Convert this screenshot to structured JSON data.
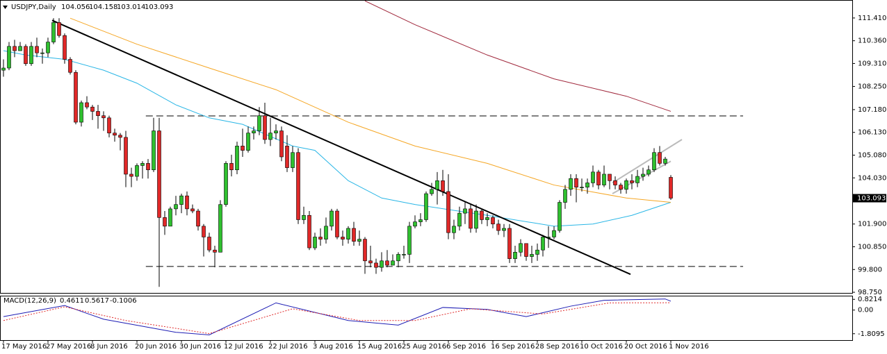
{
  "chart_data": [
    {
      "type": "candlestick",
      "title": "USDJPY,Daily",
      "categories": [
        "17 May 2016",
        null,
        null,
        null,
        null,
        null,
        null,
        null,
        "27 May 2016",
        null,
        null,
        null,
        null,
        null,
        null,
        null,
        "8 Jun 2016",
        null,
        null,
        null,
        null,
        null,
        null,
        null,
        "20 Jun 2016",
        null,
        null,
        null,
        null,
        null,
        null,
        null,
        "30 Jun 2016",
        null,
        null,
        null,
        null,
        null,
        null,
        null,
        "12 Jul 2016",
        null,
        null,
        null,
        null,
        null,
        null,
        null,
        "22 Jul 2016",
        null,
        null,
        null,
        null,
        null,
        null,
        null,
        "3 Aug 2016",
        null,
        null,
        null,
        null,
        null,
        null,
        null,
        "15 Aug 2016",
        null,
        null,
        null,
        null,
        null,
        null,
        null,
        "25 Aug 2016",
        null,
        null,
        null,
        null,
        null,
        null,
        null,
        "6 Sep 2016",
        null,
        null,
        null,
        null,
        null,
        null,
        null,
        "16 Sep 2016",
        null,
        null,
        null,
        null,
        null,
        null,
        null,
        "28 Sep 2016",
        null,
        null,
        null,
        null,
        null,
        null,
        null,
        "10 Oct 2016",
        null,
        null,
        null,
        null,
        null,
        null,
        null,
        "20 Oct 2016",
        null,
        null,
        null,
        null,
        null,
        null,
        null,
        "1 Nov 2016"
      ],
      "ohlc": [
        [
          109.0,
          109.5,
          108.7,
          109.1
        ],
        [
          109.1,
          110.3,
          109.0,
          110.1
        ],
        [
          110.1,
          110.4,
          109.6,
          109.9
        ],
        [
          109.9,
          110.3,
          109.9,
          110.1
        ],
        [
          110.1,
          110.2,
          109.2,
          109.3
        ],
        [
          109.3,
          110.3,
          109.2,
          110.1
        ],
        [
          110.1,
          110.5,
          109.6,
          109.8
        ],
        [
          109.8,
          110.0,
          109.3,
          109.8
        ],
        [
          109.8,
          110.5,
          109.6,
          110.3
        ],
        [
          110.3,
          111.4,
          110.2,
          111.2
        ],
        [
          111.2,
          111.4,
          110.5,
          110.6
        ],
        [
          110.6,
          110.7,
          109.3,
          109.5
        ],
        [
          109.5,
          109.6,
          108.8,
          108.9
        ],
        [
          108.9,
          109.0,
          106.5,
          106.6
        ],
        [
          106.6,
          107.6,
          106.4,
          107.5
        ],
        [
          107.5,
          107.8,
          107.2,
          107.3
        ],
        [
          107.3,
          107.4,
          106.7,
          107.1
        ],
        [
          107.1,
          107.4,
          106.3,
          106.9
        ],
        [
          106.9,
          107.1,
          106.2,
          106.8
        ],
        [
          106.8,
          106.9,
          105.9,
          106.1
        ],
        [
          106.1,
          106.3,
          105.7,
          106.0
        ],
        [
          106.0,
          106.1,
          105.3,
          105.9
        ],
        [
          105.9,
          106.2,
          103.6,
          104.2
        ],
        [
          104.2,
          104.5,
          103.6,
          104.1
        ],
        [
          104.1,
          104.7,
          103.9,
          104.6
        ],
        [
          104.6,
          104.8,
          104.0,
          104.7
        ],
        [
          104.7,
          104.9,
          104.0,
          104.4
        ],
        [
          104.4,
          106.8,
          104.3,
          106.2
        ],
        [
          106.2,
          106.8,
          99.0,
          102.2
        ],
        [
          102.2,
          102.5,
          101.4,
          101.8
        ],
        [
          101.8,
          102.7,
          101.8,
          102.6
        ],
        [
          102.6,
          103.2,
          102.3,
          102.8
        ],
        [
          102.8,
          103.3,
          102.4,
          103.2
        ],
        [
          103.2,
          103.4,
          102.3,
          102.6
        ],
        [
          102.6,
          102.8,
          102.4,
          102.5
        ],
        [
          102.5,
          102.6,
          101.6,
          101.8
        ],
        [
          101.8,
          101.9,
          100.4,
          101.3
        ],
        [
          101.3,
          101.5,
          100.6,
          100.7
        ],
        [
          100.7,
          100.9,
          99.9,
          100.6
        ],
        [
          100.6,
          103.0,
          100.6,
          102.8
        ],
        [
          102.8,
          104.8,
          102.7,
          104.7
        ],
        [
          104.7,
          105.1,
          104.1,
          104.4
        ],
        [
          104.4,
          105.7,
          104.2,
          105.5
        ],
        [
          105.5,
          106.3,
          105.0,
          105.3
        ],
        [
          105.3,
          106.4,
          105.2,
          106.1
        ],
        [
          106.1,
          106.4,
          105.8,
          106.2
        ],
        [
          106.2,
          107.3,
          106.0,
          106.9
        ],
        [
          106.9,
          107.5,
          105.6,
          105.8
        ],
        [
          105.8,
          106.8,
          105.5,
          106.1
        ],
        [
          106.1,
          106.5,
          105.8,
          106.2
        ],
        [
          106.2,
          106.4,
          104.8,
          105.0
        ],
        [
          105.5,
          106.0,
          104.3,
          104.5
        ],
        [
          104.5,
          105.5,
          104.3,
          105.2
        ],
        [
          105.2,
          105.4,
          101.9,
          102.1
        ],
        [
          102.1,
          102.7,
          101.9,
          102.3
        ],
        [
          102.3,
          102.5,
          100.7,
          100.8
        ],
        [
          100.8,
          101.5,
          100.7,
          101.3
        ],
        [
          101.3,
          101.7,
          100.9,
          101.2
        ],
        [
          101.2,
          102.2,
          101.0,
          101.8
        ],
        [
          101.8,
          102.6,
          101.6,
          102.5
        ],
        [
          102.5,
          102.6,
          101.2,
          101.3
        ],
        [
          101.3,
          101.6,
          100.9,
          101.2
        ],
        [
          101.2,
          101.8,
          101.0,
          101.7
        ],
        [
          101.7,
          102.0,
          100.9,
          101.1
        ],
        [
          101.1,
          101.6,
          100.9,
          101.2
        ],
        [
          101.2,
          101.3,
          99.6,
          100.2
        ],
        [
          100.2,
          100.9,
          99.9,
          100.1
        ],
        [
          100.1,
          100.3,
          99.6,
          99.9
        ],
        [
          99.9,
          100.6,
          99.7,
          100.2
        ],
        [
          100.2,
          100.7,
          99.9,
          100.0
        ],
        [
          100.0,
          100.5,
          100.0,
          100.2
        ],
        [
          100.2,
          100.6,
          99.9,
          100.5
        ],
        [
          100.5,
          100.9,
          100.3,
          100.5
        ],
        [
          100.5,
          102.0,
          100.1,
          101.8
        ],
        [
          101.8,
          102.3,
          101.7,
          102.0
        ],
        [
          102.0,
          102.4,
          101.8,
          102.1
        ],
        [
          102.1,
          103.4,
          102.0,
          103.3
        ],
        [
          103.3,
          103.8,
          103.2,
          103.5
        ],
        [
          103.5,
          104.3,
          102.8,
          103.9
        ],
        [
          103.9,
          104.4,
          103.2,
          103.4
        ],
        [
          103.4,
          104.2,
          101.2,
          101.5
        ],
        [
          101.5,
          102.1,
          101.2,
          101.8
        ],
        [
          101.8,
          102.7,
          101.6,
          102.4
        ],
        [
          102.4,
          102.9,
          101.9,
          102.6
        ],
        [
          102.6,
          102.8,
          101.5,
          101.7
        ],
        [
          101.7,
          102.8,
          101.5,
          102.5
        ],
        [
          102.5,
          102.6,
          101.9,
          102.1
        ],
        [
          102.1,
          102.4,
          101.8,
          102.2
        ],
        [
          102.2,
          102.3,
          101.7,
          101.9
        ],
        [
          101.9,
          102.1,
          101.4,
          101.6
        ],
        [
          101.6,
          101.9,
          101.3,
          101.7
        ],
        [
          101.7,
          101.9,
          100.1,
          100.3
        ],
        [
          100.3,
          100.9,
          100.1,
          100.6
        ],
        [
          100.6,
          101.2,
          100.4,
          101.0
        ],
        [
          101.0,
          101.0,
          100.2,
          100.4
        ],
        [
          100.4,
          100.9,
          100.1,
          100.5
        ],
        [
          100.5,
          101.0,
          100.2,
          100.7
        ],
        [
          100.7,
          101.4,
          100.4,
          101.3
        ],
        [
          101.3,
          101.8,
          100.8,
          101.3
        ],
        [
          101.3,
          101.8,
          101.2,
          101.6
        ],
        [
          101.6,
          103.0,
          101.5,
          102.9
        ],
        [
          102.9,
          103.7,
          102.6,
          103.5
        ],
        [
          103.5,
          104.2,
          103.2,
          104.0
        ],
        [
          104.0,
          104.2,
          102.9,
          103.6
        ],
        [
          103.6,
          104.0,
          103.4,
          103.6
        ],
        [
          103.6,
          104.0,
          103.3,
          103.8
        ],
        [
          103.8,
          104.6,
          103.6,
          104.3
        ],
        [
          104.3,
          104.4,
          103.5,
          103.7
        ],
        [
          103.7,
          104.6,
          103.6,
          104.2
        ],
        [
          104.2,
          104.2,
          103.5,
          103.9
        ],
        [
          103.9,
          104.1,
          103.5,
          103.7
        ],
        [
          103.7,
          103.8,
          103.3,
          103.5
        ],
        [
          103.5,
          104.0,
          103.3,
          103.9
        ],
        [
          103.9,
          104.2,
          103.5,
          103.8
        ],
        [
          103.8,
          104.4,
          103.6,
          104.1
        ],
        [
          104.1,
          104.5,
          103.9,
          104.2
        ],
        [
          104.2,
          104.6,
          104.1,
          104.4
        ],
        [
          104.4,
          105.4,
          104.3,
          105.2
        ],
        [
          105.2,
          105.5,
          104.6,
          104.7
        ],
        [
          104.7,
          105.0,
          104.6,
          104.9
        ],
        [
          104.056,
          104.158,
          103.014,
          103.093
        ]
      ],
      "up_color": "#2fc02f",
      "down_color": "#e02828",
      "series": [
        {
          "color": "#29b6e6",
          "x": [
            0,
            4,
            11,
            18,
            24,
            31,
            37,
            43,
            52,
            56,
            62,
            68,
            74,
            87,
            99,
            106,
            113,
            120
          ],
          "values": [
            109.9,
            109.7,
            109.5,
            109.0,
            108.4,
            107.4,
            106.8,
            106.5,
            105.5,
            105.3,
            103.9,
            103.1,
            102.8,
            102.3,
            101.8,
            101.9,
            102.3,
            102.9
          ]
        },
        {
          "color": "#f5a623",
          "x": [
            12,
            24,
            37,
            49,
            62,
            74,
            87,
            99,
            112,
            120
          ],
          "values": [
            111.4,
            110.2,
            109.1,
            108.1,
            106.6,
            105.5,
            104.7,
            103.7,
            103.1,
            102.9
          ]
        },
        {
          "color": "#a0283c",
          "x": [
            65,
            74,
            87,
            99,
            112,
            120
          ],
          "values": [
            112.2,
            111.1,
            109.7,
            108.6,
            107.8,
            107.1
          ]
        }
      ],
      "trendlines": [
        {
          "color": "#000000",
          "x": [
            8.75,
            112.75
          ],
          "y": [
            111.3,
            99.58
          ]
        },
        {
          "color": "#bbbbbb",
          "x": [
            109.5,
            122
          ],
          "y": [
            103.8,
            105.8
          ]
        },
        {
          "color": "#bbbbbb",
          "x": [
            109.5,
            120
          ],
          "y": [
            103.3,
            104.8
          ]
        }
      ],
      "levels": [
        {
          "value": 106.89,
          "x": [
            25.6,
            133
          ]
        },
        {
          "value": 99.94,
          "x": [
            25.6,
            133
          ]
        }
      ],
      "ylim": [
        98.72,
        112.24
      ],
      "yticks": [
        {
          "value": 111.41,
          "label": "111.410"
        },
        {
          "value": 110.36,
          "label": "110.360"
        },
        {
          "value": 109.31,
          "label": "109.310"
        },
        {
          "value": 108.25,
          "label": "108.250"
        },
        {
          "value": 107.18,
          "label": "107.180"
        },
        {
          "value": 106.13,
          "label": "106.130"
        },
        {
          "value": 105.08,
          "label": "105.080"
        },
        {
          "value": 104.03,
          "label": "104.030"
        },
        {
          "value": 101.9,
          "label": "101.900"
        },
        {
          "value": 100.85,
          "label": "100.850"
        },
        {
          "value": 99.8,
          "label": "99.800"
        },
        {
          "value": 98.75,
          "label": "98.750"
        }
      ]
    },
    {
      "type": "line",
      "title": "MACD(12,26,9)",
      "readings": [
        0.4611,
        0.5617,
        -0.1006
      ],
      "series": [
        {
          "color": "#1c1cb4",
          "dash": false,
          "x": [
            0,
            11,
            18,
            31,
            37,
            49,
            62,
            71,
            79,
            87,
            94,
            102,
            108,
            119,
            120
          ],
          "values": [
            -0.5,
            0.35,
            -0.7,
            -1.7,
            -1.9,
            0.55,
            -0.8,
            -1.15,
            0.2,
            0.05,
            -0.5,
            0.3,
            0.75,
            0.85,
            0.68
          ]
        },
        {
          "color": "#e02828",
          "dash": true,
          "x": [
            0,
            11,
            22,
            37,
            52,
            64,
            74,
            84,
            97,
            109,
            120
          ],
          "values": [
            -0.8,
            0.25,
            -0.8,
            -1.8,
            0.1,
            -0.8,
            -0.8,
            0.1,
            -0.3,
            0.55,
            0.56
          ]
        }
      ],
      "ylim": [
        -2.3,
        1.1
      ],
      "yticks": [
        0.8214,
        {
          "value": 0,
          "label": "0.00"
        },
        -1.8095
      ]
    }
  ]
}
